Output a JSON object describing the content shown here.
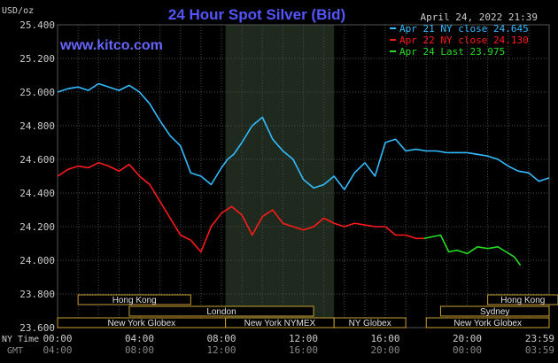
{
  "chart_data": {
    "type": "line",
    "title": "24 Hour Spot Silver (Bid)",
    "watermark": "www.kitco.com",
    "ylabel": "USD/oz",
    "date_label": "April 24, 2022 21:39",
    "ylim": [
      23.6,
      25.4
    ],
    "y_ticks": [
      {
        "value": 25.4,
        "label": "25.400"
      },
      {
        "value": 25.2,
        "label": "25.200"
      },
      {
        "value": 25.0,
        "label": "25.000"
      },
      {
        "value": 24.8,
        "label": "24.800"
      },
      {
        "value": 24.6,
        "label": "24.600"
      },
      {
        "value": 24.4,
        "label": "24.400"
      },
      {
        "value": 24.2,
        "label": "24.200"
      },
      {
        "value": 24.0,
        "label": "24.000"
      },
      {
        "value": 23.8,
        "label": "23.800"
      },
      {
        "value": 23.6,
        "label": "23.600"
      }
    ],
    "xlim": [
      0,
      24
    ],
    "x_row_labels": [
      "NY Time",
      "GMT"
    ],
    "x_ticks": [
      {
        "hour": 0,
        "ny": "00:00",
        "gmt": "04:00"
      },
      {
        "hour": 4,
        "ny": "04:00",
        "gmt": "08:00"
      },
      {
        "hour": 8,
        "ny": "08:00",
        "gmt": "12:00"
      },
      {
        "hour": 12,
        "ny": "12:00",
        "gmt": "16:00"
      },
      {
        "hour": 16,
        "ny": "16:00",
        "gmt": "20:00"
      },
      {
        "hour": 20,
        "ny": "20:00",
        "gmt": "00:00"
      },
      {
        "hour": 24,
        "ny": "23:59",
        "gmt": "03:59"
      }
    ],
    "grid": true,
    "highlight_band": {
      "start": 8.2,
      "end": 13.5
    },
    "legend_position": "top-right",
    "series": [
      {
        "name": "Apr 21 NY close 24.645",
        "color": "#33bbff",
        "x": [
          0,
          0.5,
          1,
          1.5,
          2,
          2.5,
          3,
          3.5,
          4,
          4.5,
          5,
          5.5,
          6,
          6.5,
          7,
          7.5,
          8,
          8.3,
          8.6,
          9,
          9.5,
          10,
          10.5,
          11,
          11.5,
          12,
          12.5,
          13,
          13.5,
          14,
          14.5,
          15,
          15.5,
          16,
          16.5,
          17,
          17.5,
          18,
          18.5,
          19,
          19.5,
          20,
          20.5,
          21,
          21.5,
          22,
          22.5,
          23,
          23.5,
          24
        ],
        "y": [
          25.0,
          25.02,
          25.03,
          25.01,
          25.05,
          25.03,
          25.01,
          25.04,
          25.0,
          24.93,
          24.83,
          24.74,
          24.68,
          24.52,
          24.5,
          24.45,
          24.55,
          24.6,
          24.63,
          24.7,
          24.8,
          24.85,
          24.72,
          24.65,
          24.6,
          24.48,
          24.43,
          24.45,
          24.5,
          24.42,
          24.52,
          24.58,
          24.5,
          24.7,
          24.72,
          24.65,
          24.66,
          24.65,
          24.65,
          24.64,
          24.64,
          24.64,
          24.63,
          24.62,
          24.6,
          24.56,
          24.53,
          24.52,
          24.47,
          24.49
        ]
      },
      {
        "name": "Apr 22 NY close 24.130",
        "color": "#ff1a1a",
        "x": [
          0,
          0.5,
          1,
          1.5,
          2,
          2.5,
          3,
          3.5,
          4,
          4.5,
          5,
          5.5,
          6,
          6.5,
          7,
          7.5,
          8,
          8.5,
          9,
          9.5,
          10,
          10.5,
          11,
          11.5,
          12,
          12.5,
          13,
          13.5,
          14,
          14.5,
          15,
          15.5,
          16,
          16.5,
          17,
          17.5,
          17.9
        ],
        "y": [
          24.5,
          24.54,
          24.56,
          24.55,
          24.58,
          24.56,
          24.53,
          24.57,
          24.5,
          24.45,
          24.35,
          24.25,
          24.15,
          24.12,
          24.05,
          24.2,
          24.28,
          24.32,
          24.27,
          24.15,
          24.26,
          24.3,
          24.22,
          24.2,
          24.18,
          24.2,
          24.25,
          24.22,
          24.2,
          24.22,
          24.21,
          24.2,
          24.2,
          24.15,
          24.15,
          24.13,
          24.13
        ]
      },
      {
        "name": "Apr 24 Last 23.975",
        "color": "#22dd22",
        "x": [
          17.9,
          18.3,
          18.7,
          19.1,
          19.5,
          20.0,
          20.5,
          21.0,
          21.5,
          21.9,
          22.3,
          22.6
        ],
        "y": [
          24.13,
          24.14,
          24.15,
          24.05,
          24.06,
          24.04,
          24.08,
          24.07,
          24.08,
          24.05,
          24.02,
          23.97
        ]
      }
    ],
    "sessions_row1": [
      {
        "label": "Hong Kong",
        "start": 1.0,
        "end": 6.5,
        "clipLeft": false
      },
      {
        "label": "Hong Kong",
        "start": 21.0,
        "end": 25.5,
        "clipLeft": false
      }
    ],
    "sessions_row2": [
      {
        "label": "London",
        "start": 3.5,
        "end": 12.5,
        "clipLeft": false
      },
      {
        "label": "Sydney",
        "start": 18.7,
        "end": 24.0,
        "clipLeft": false
      }
    ],
    "sessions_row3": [
      {
        "label": "New York Globex",
        "start": 0,
        "end": 8.2,
        "clipLeft": true
      },
      {
        "label": "New York NYMEX",
        "start": 8.2,
        "end": 13.5,
        "clipLeft": false
      },
      {
        "label": "NY Globex",
        "start": 13.5,
        "end": 17.0,
        "clipLeft": false
      },
      {
        "label": "New York Globex",
        "start": 18.0,
        "end": 24.0,
        "clipLeft": false
      }
    ],
    "colors": {
      "background": "#000000",
      "grid": "#4a4a4a",
      "title": "#5555ff",
      "watermark": "#6666ff",
      "text": "#cccccc",
      "gmt_text": "#888888",
      "band": "#1e2a1e",
      "session_fill": "#000000",
      "session_border": "#c8a030",
      "session_text": "#e0e0e0"
    }
  }
}
